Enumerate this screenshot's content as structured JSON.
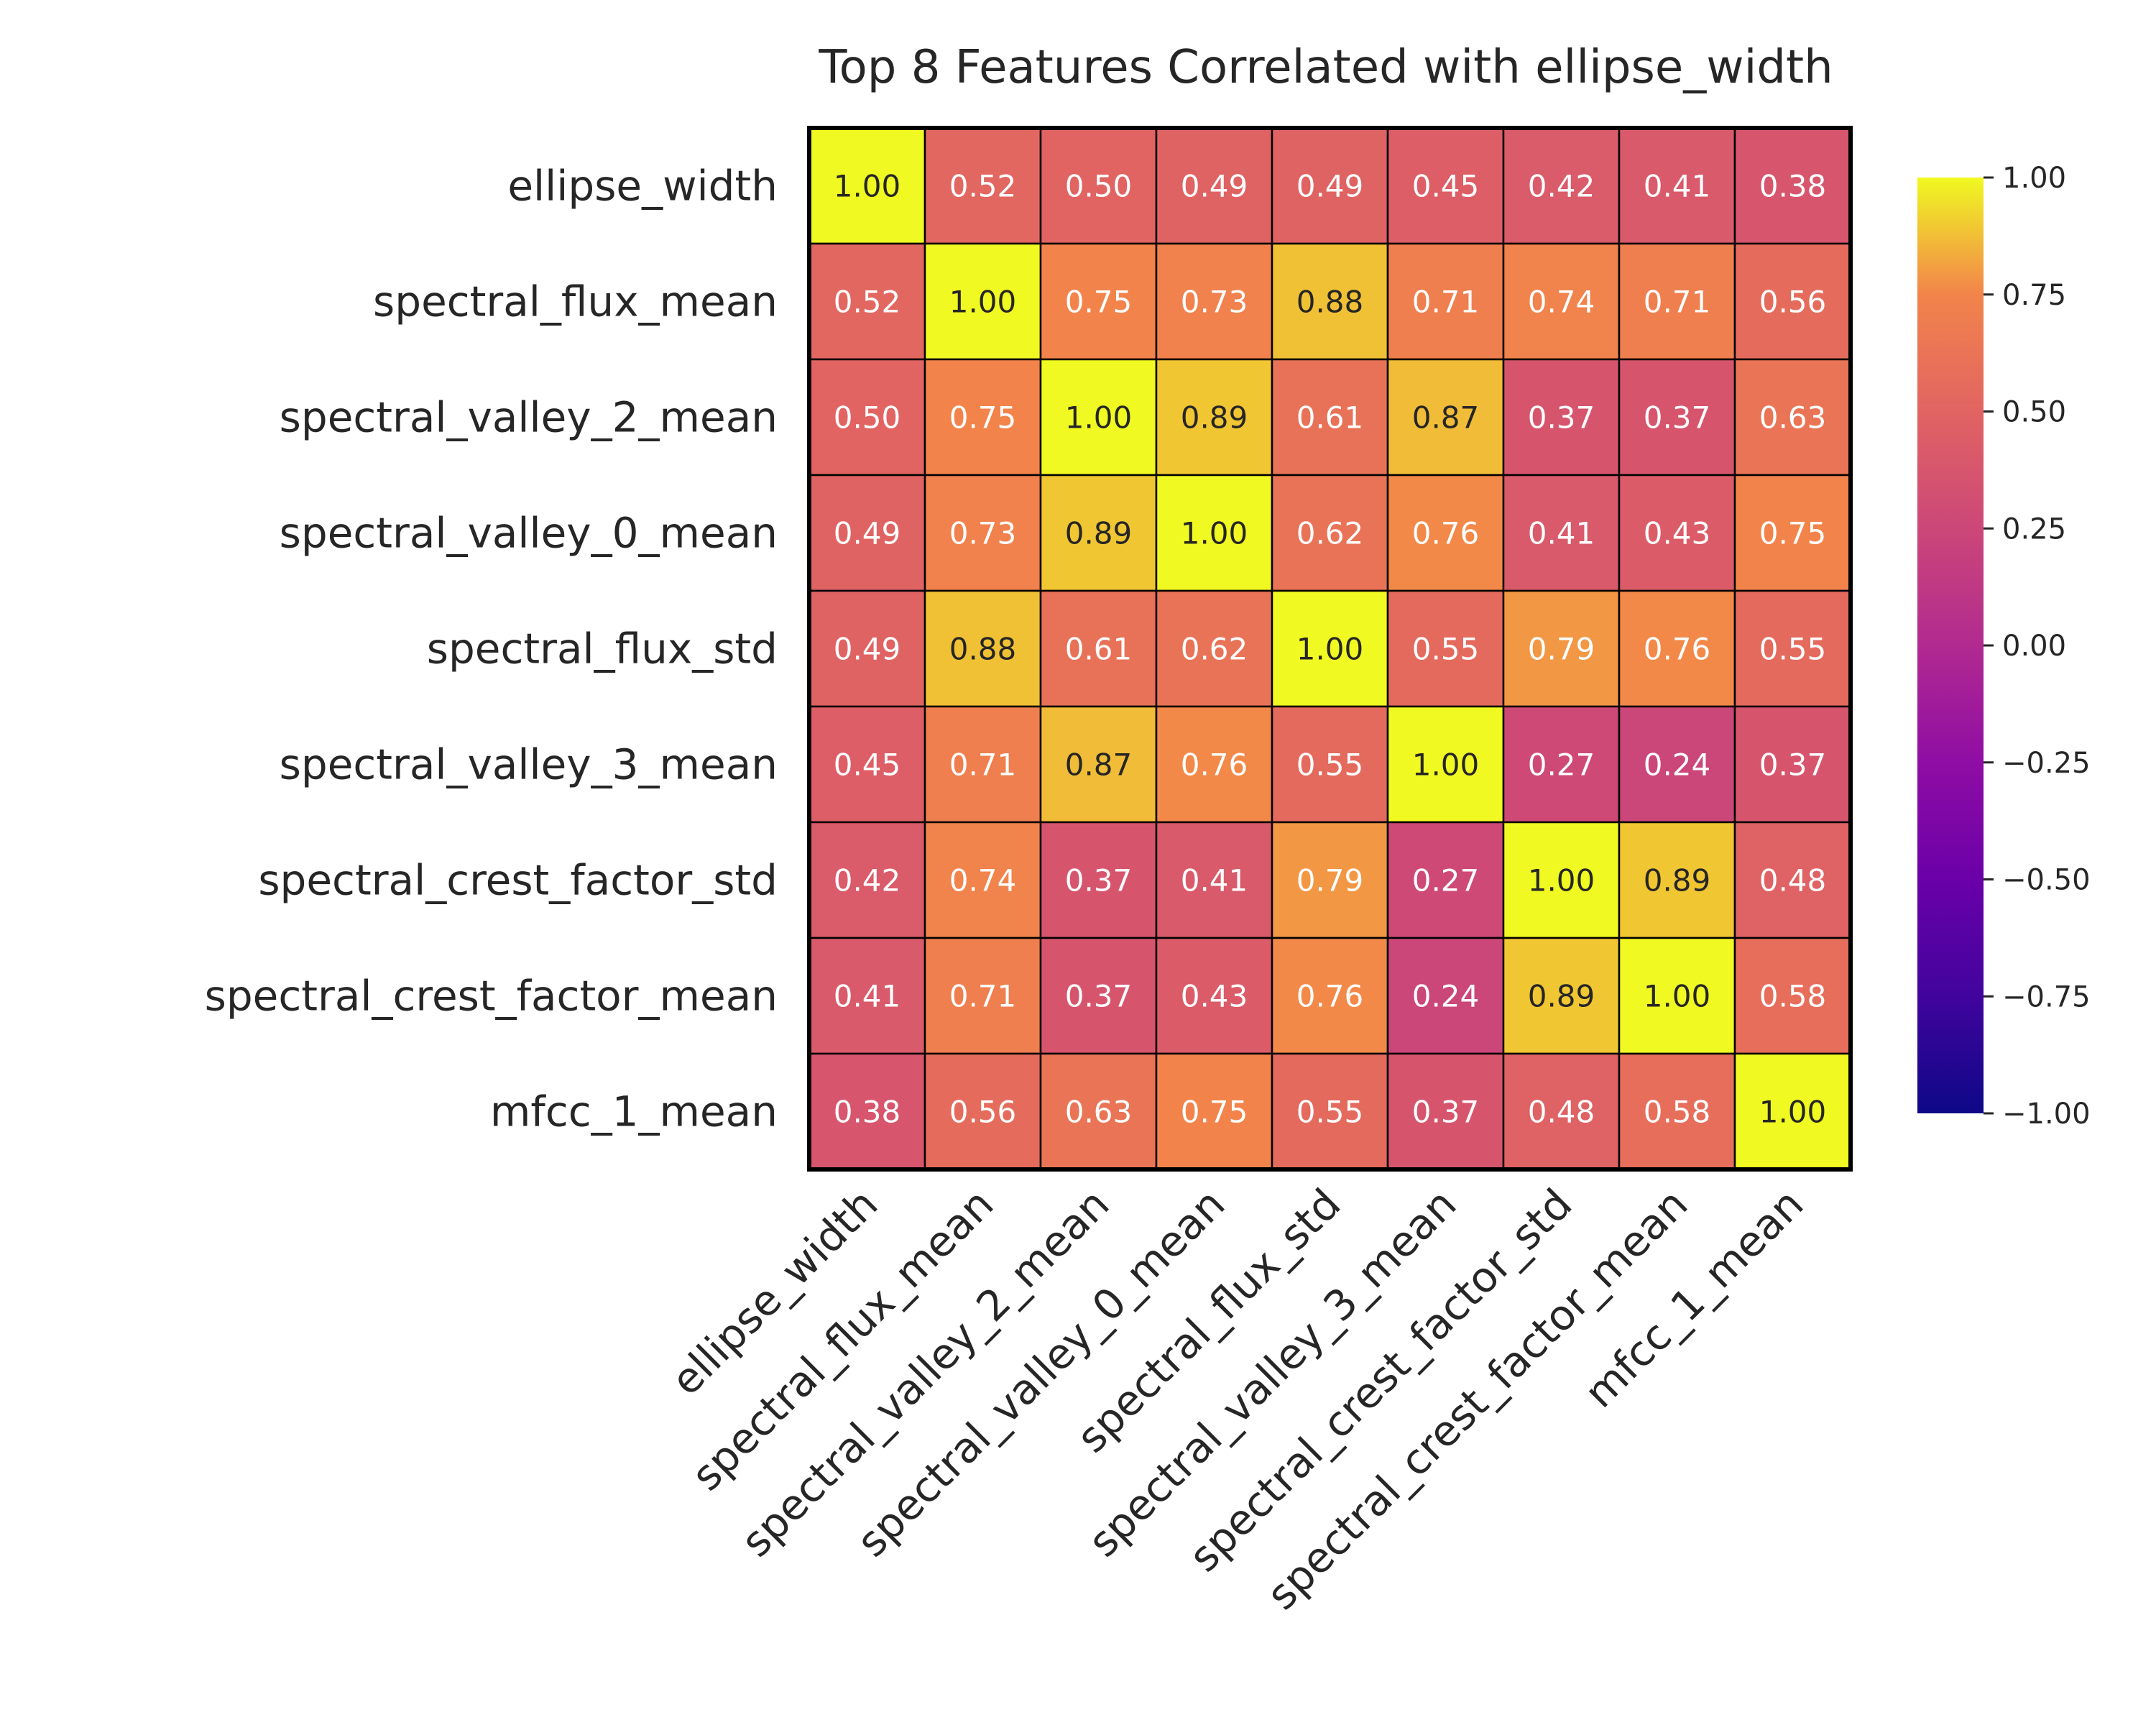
{
  "chart_data": {
    "type": "heatmap",
    "title": "Top 8 Features Correlated with ellipse_width",
    "labels": [
      "ellipse_width",
      "spectral_flux_mean",
      "spectral_valley_2_mean",
      "spectral_valley_0_mean",
      "spectral_flux_std",
      "spectral_valley_3_mean",
      "spectral_crest_factor_std",
      "spectral_crest_factor_mean",
      "mfcc_1_mean"
    ],
    "matrix": [
      [
        1.0,
        0.52,
        0.5,
        0.49,
        0.49,
        0.45,
        0.42,
        0.41,
        0.38
      ],
      [
        0.52,
        1.0,
        0.75,
        0.73,
        0.88,
        0.71,
        0.74,
        0.71,
        0.56
      ],
      [
        0.5,
        0.75,
        1.0,
        0.89,
        0.61,
        0.87,
        0.37,
        0.37,
        0.63
      ],
      [
        0.49,
        0.73,
        0.89,
        1.0,
        0.62,
        0.76,
        0.41,
        0.43,
        0.75
      ],
      [
        0.49,
        0.88,
        0.61,
        0.62,
        1.0,
        0.55,
        0.79,
        0.76,
        0.55
      ],
      [
        0.45,
        0.71,
        0.87,
        0.76,
        0.55,
        1.0,
        0.27,
        0.24,
        0.37
      ],
      [
        0.42,
        0.74,
        0.37,
        0.41,
        0.79,
        0.27,
        1.0,
        0.89,
        0.48
      ],
      [
        0.41,
        0.71,
        0.37,
        0.43,
        0.76,
        0.24,
        0.89,
        1.0,
        0.58
      ],
      [
        0.38,
        0.56,
        0.63,
        0.75,
        0.55,
        0.37,
        0.48,
        0.58,
        1.0
      ]
    ],
    "value_format": "0.00",
    "colormap": "plasma",
    "vmin": -1.0,
    "vmax": 1.0,
    "colorbar_ticks": [
      "1.00",
      "0.75",
      "0.50",
      "0.25",
      "0.00",
      "−0.25",
      "−0.50",
      "−0.75",
      "−1.00"
    ],
    "colorbar_tick_values": [
      1.0,
      0.75,
      0.5,
      0.25,
      0.0,
      -0.25,
      -0.5,
      -0.75,
      -1.0
    ],
    "grid": true,
    "colorbar_placement": "right"
  }
}
